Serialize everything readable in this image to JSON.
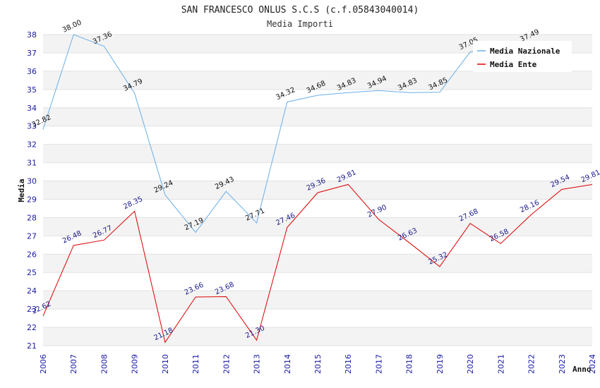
{
  "chart_data": {
    "type": "line",
    "title": "SAN FRANCESCO ONLUS S.C.S (c.f.05843040014)",
    "subtitle": "Media Importi",
    "xlabel": "Anno",
    "ylabel": "Media",
    "ylim": [
      21,
      38
    ],
    "yticks": [
      21,
      22,
      23,
      24,
      25,
      26,
      27,
      28,
      29,
      30,
      31,
      32,
      33,
      34,
      35,
      36,
      37,
      38
    ],
    "grid": "horizontal alternating bands",
    "legend_position": "top-right",
    "x": [
      "2006",
      "2007",
      "2008",
      "2009",
      "2010",
      "2011",
      "2012",
      "2013",
      "2014",
      "2015",
      "2016",
      "2017",
      "2018",
      "2019",
      "2020",
      "2021",
      "2022",
      "2023",
      "2024"
    ],
    "series": [
      {
        "name": "Media Nazionale",
        "color": "#6aaee8",
        "values": [
          32.82,
          38.0,
          37.36,
          34.79,
          29.24,
          27.19,
          29.43,
          27.71,
          34.32,
          34.68,
          34.83,
          34.94,
          34.83,
          34.85,
          37.05,
          null,
          37.49,
          null,
          null
        ],
        "labels": [
          "32.82",
          "38.00",
          "37.36",
          "34.79",
          "29.24",
          "27.19",
          "29.43",
          "27.71",
          "34.32",
          "34.68",
          "34.83",
          "34.94",
          "34.83",
          "34.85",
          "37.05",
          "",
          "37.49",
          "",
          ""
        ]
      },
      {
        "name": "Media Ente",
        "color": "#dd0000",
        "values": [
          22.62,
          26.48,
          26.77,
          28.35,
          21.18,
          23.66,
          23.68,
          21.3,
          27.46,
          29.36,
          29.81,
          27.9,
          26.63,
          25.32,
          27.68,
          26.58,
          28.16,
          29.54,
          29.81
        ],
        "labels": [
          "22.62",
          "26.48",
          "26.77",
          "28.35",
          "21.18",
          "23.66",
          "23.68",
          "21.30",
          "27.46",
          "29.36",
          "29.81",
          "27.90",
          "26.63",
          "25.32",
          "27.68",
          "26.58",
          "28.16",
          "29.54",
          "29.81"
        ]
      }
    ]
  }
}
